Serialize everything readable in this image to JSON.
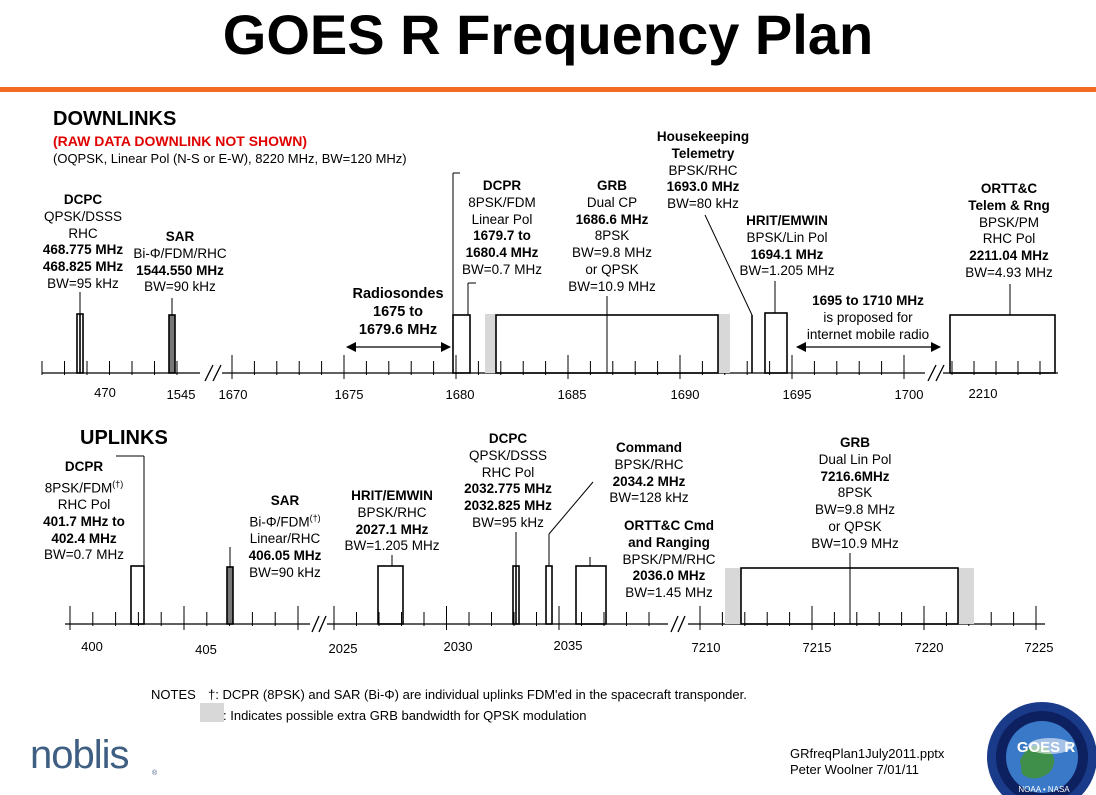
{
  "title": "GOES R Frequency Plan",
  "downlinks": {
    "heading": "DOWNLINKS",
    "raw_note": "(RAW DATA DOWNLINK NOT SHOWN)",
    "raw_detail": "(OQPSK, Linear Pol (N-S or E-W), 8220 MHz, BW=120 MHz)",
    "dcpc": [
      "DCPC",
      "QPSK/DSSS",
      "RHC",
      "468.775 MHz",
      "468.825 MHz",
      "BW=95 kHz"
    ],
    "sar": [
      "SAR",
      "Bi-Φ/FDM/RHC",
      "1544.550 MHz",
      "BW=90 kHz"
    ],
    "radiosondes": [
      "Radiosondes",
      "1675 to",
      "1679.6 MHz"
    ],
    "dcpr": [
      "DCPR",
      "8PSK/FDM",
      "Linear Pol",
      "1679.7 to",
      "1680.4 MHz",
      "BW=0.7 MHz"
    ],
    "grb": [
      "GRB",
      "Dual CP",
      "1686.6 MHz",
      "8PSK",
      "BW=9.8 MHz",
      "or QPSK",
      "BW=10.9 MHz"
    ],
    "hkt": [
      "Housekeeping",
      "Telemetry",
      "BPSK/RHC",
      "1693.0 MHz",
      "BW=80 kHz"
    ],
    "hrit": [
      "HRIT/EMWIN",
      "BPSK/Lin Pol",
      "1694.1 MHz",
      "BW=1.205 MHz"
    ],
    "proposed": [
      "1695 to 1710 MHz",
      "is proposed for",
      "internet mobile radio"
    ],
    "orttc": [
      "ORTT&C",
      "Telem & Rng",
      "BPSK/PM",
      "RHC Pol",
      "2211.04 MHz",
      "BW=4.93 MHz"
    ],
    "ticks": [
      "470",
      "1545",
      "1670",
      "1675",
      "1680",
      "1685",
      "1690",
      "1695",
      "1700",
      "2210"
    ]
  },
  "uplinks": {
    "heading": "UPLINKS",
    "dcpr": [
      "DCPR",
      "8PSK/FDM",
      "(†)",
      "RHC Pol",
      "401.7 MHz to",
      "402.4 MHz",
      "BW=0.7 MHz"
    ],
    "sar": [
      "SAR",
      "Bi-Φ/FDM",
      "(†)",
      "Linear/RHC",
      "406.05 MHz",
      "BW=90 kHz"
    ],
    "hrit": [
      "HRIT/EMWIN",
      "BPSK/RHC",
      "2027.1 MHz",
      "BW=1.205 MHz"
    ],
    "dcpc": [
      "DCPC",
      "QPSK/DSSS",
      "RHC Pol",
      "2032.775 MHz",
      "2032.825 MHz",
      "BW=95 kHz"
    ],
    "command": [
      "Command",
      "BPSK/RHC",
      "2034.2 MHz",
      "BW=128 kHz"
    ],
    "orttc": [
      "ORTT&C Cmd",
      "and Ranging",
      "BPSK/PM/RHC",
      "2036.0 MHz",
      "BW=1.45 MHz"
    ],
    "grb": [
      "GRB",
      "Dual Lin Pol",
      "7216.6MHz",
      "8PSK",
      "BW=9.8 MHz",
      "or QPSK",
      "BW=10.9 MHz"
    ],
    "ticks": [
      "400",
      "405",
      "2025",
      "2030",
      "2035",
      "7210",
      "7215",
      "7220",
      "7225"
    ]
  },
  "notes": {
    "label": "NOTES",
    "dagger": "†: DCPR (8PSK) and SAR (Bi-Φ) are individual uplinks FDM'ed in the spacecraft transponder.",
    "gray": ": Indicates possible extra GRB bandwidth for QPSK modulation"
  },
  "footer": {
    "file": "GRfreqPlan1July2011.pptx",
    "author": "Peter Woolner  7/01/11",
    "logo": "noblis",
    "seal": "GOES R",
    "seal_sub": "NOAA • NASA"
  },
  "colors": {
    "rule": "#f26b21",
    "red": "#e00000",
    "gray_band": "#d8d8d8",
    "logo": "#3f5f82"
  }
}
